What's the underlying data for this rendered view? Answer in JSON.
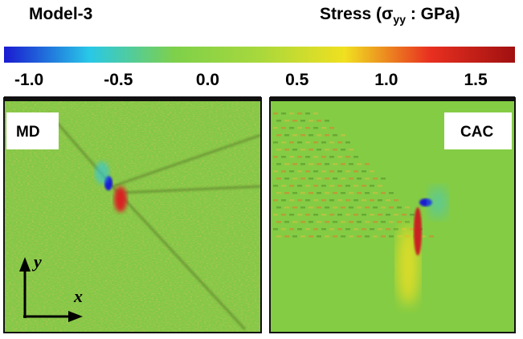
{
  "title": "Model-3",
  "colorbar": {
    "label": {
      "prefix": "Stress (σ",
      "subscript": "yy",
      "suffix": " : GPa)"
    },
    "lim": [
      -1.14,
      1.72
    ],
    "ticks": [
      {
        "value": -1.0,
        "label": "-1.0"
      },
      {
        "value": -0.5,
        "label": "-0.5"
      },
      {
        "value": 0.0,
        "label": "0.0"
      },
      {
        "value": 0.5,
        "label": "0.5"
      },
      {
        "value": 1.0,
        "label": "1.0"
      },
      {
        "value": 1.5,
        "label": "1.5"
      }
    ],
    "colors": [
      "#1a1ad0",
      "#28c8e8",
      "#7ed04a",
      "#a8d83c",
      "#f0e020",
      "#e83020",
      "#a01010"
    ]
  },
  "panels": [
    {
      "label": "MD"
    },
    {
      "label": "CAC"
    }
  ],
  "axes": {
    "y": "y",
    "x": "x"
  }
}
